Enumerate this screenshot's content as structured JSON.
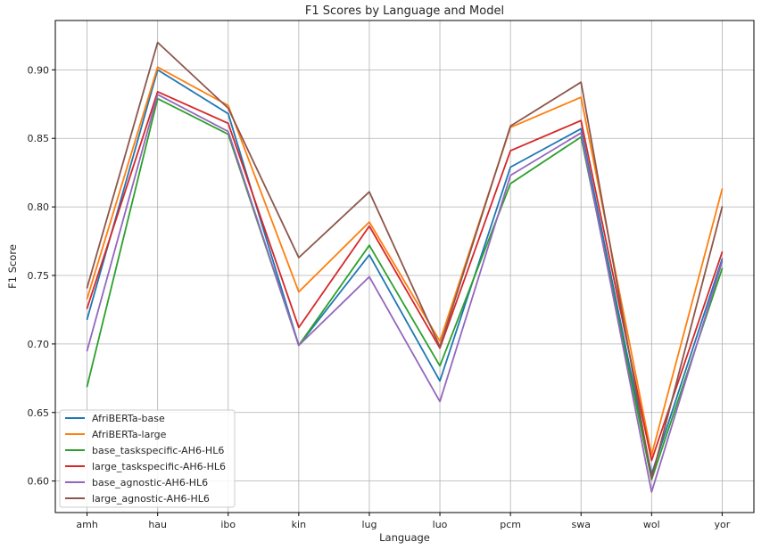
{
  "chart_data": {
    "type": "line",
    "title": "F1 Scores by Language and Model",
    "xlabel": "Language",
    "ylabel": "F1 Score",
    "categories": [
      "amh",
      "hau",
      "ibo",
      "kin",
      "lug",
      "luo",
      "pcm",
      "swa",
      "wol",
      "yor"
    ],
    "ylim": [
      0.577,
      0.936
    ],
    "yticks": [
      "0.60",
      "0.65",
      "0.70",
      "0.75",
      "0.80",
      "0.85",
      "0.90"
    ],
    "grid": true,
    "legend_position": "lower-left",
    "series": [
      {
        "name": "AfriBERTa-base",
        "color": "#1f77b4",
        "values": [
          0.718,
          0.9,
          0.868,
          0.699,
          0.765,
          0.673,
          0.829,
          0.857,
          0.605,
          0.762
        ]
      },
      {
        "name": "AfriBERTa-large",
        "color": "#ff7f0e",
        "values": [
          0.733,
          0.902,
          0.874,
          0.738,
          0.789,
          0.702,
          0.858,
          0.88,
          0.619,
          0.813
        ]
      },
      {
        "name": "base_taskspecific-AH6-HL6",
        "color": "#2ca02c",
        "values": [
          0.669,
          0.879,
          0.853,
          0.699,
          0.772,
          0.684,
          0.817,
          0.851,
          0.601,
          0.755
        ]
      },
      {
        "name": "large_taskspecific-AH6-HL6",
        "color": "#d62728",
        "values": [
          0.726,
          0.884,
          0.861,
          0.712,
          0.786,
          0.697,
          0.841,
          0.863,
          0.615,
          0.767
        ]
      },
      {
        "name": "base_agnostic-AH6-HL6",
        "color": "#9467bd",
        "values": [
          0.695,
          0.882,
          0.855,
          0.699,
          0.749,
          0.658,
          0.823,
          0.854,
          0.592,
          0.76
        ]
      },
      {
        "name": "large_agnostic-AH6-HL6",
        "color": "#8c564b",
        "values": [
          0.741,
          0.92,
          0.872,
          0.763,
          0.811,
          0.698,
          0.859,
          0.891,
          0.602,
          0.8
        ]
      }
    ]
  }
}
